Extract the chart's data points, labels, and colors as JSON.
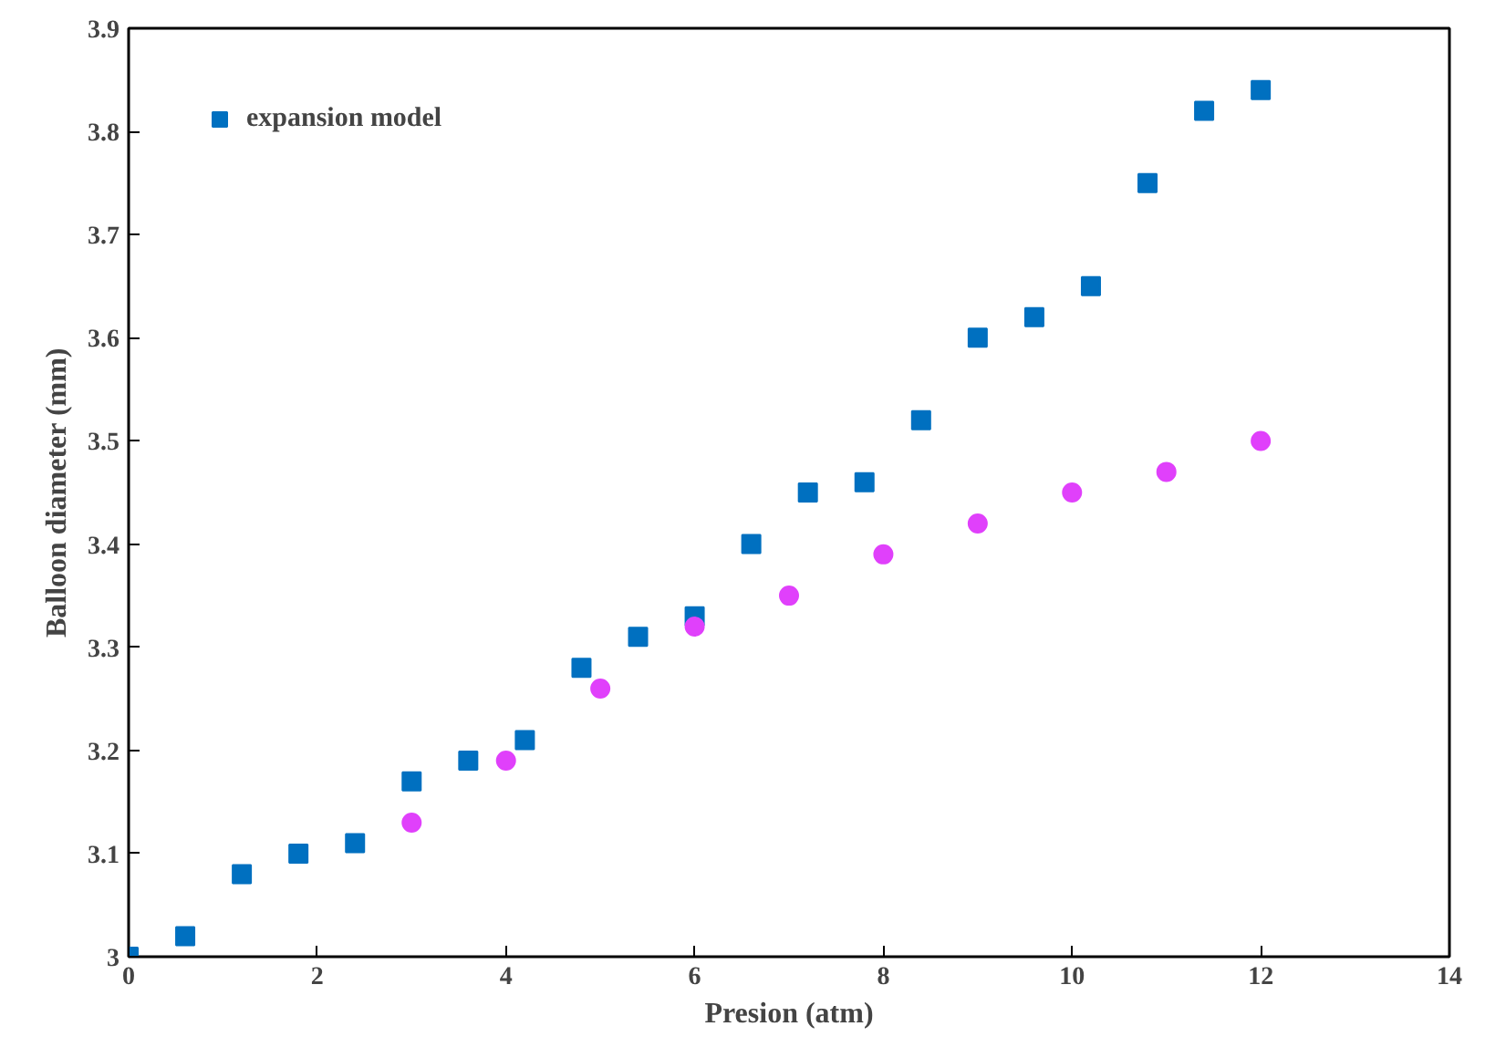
{
  "chart_data": {
    "type": "scatter",
    "xlabel": "Presion (atm)",
    "ylabel": "Balloon diameter (mm)",
    "xlim": [
      0,
      14
    ],
    "xticks": [
      0,
      2,
      4,
      6,
      8,
      10,
      12,
      14
    ],
    "ylim": [
      3,
      3.9
    ],
    "yticks": [
      {
        "value": 3,
        "label": "3"
      },
      3.1,
      3.2,
      3.3,
      3.4,
      3.5,
      3.6,
      3.7,
      3.8,
      3.9
    ],
    "grid": false,
    "legend": "top left",
    "series": [
      {
        "name": "expansion model",
        "color": "#0070c0",
        "marker": "square",
        "x": [
          0,
          0.6,
          1.2,
          1.8,
          2.4,
          3.0,
          3.6,
          4.2,
          4.8,
          5.4,
          6.0,
          6.6,
          7.2,
          7.8,
          8.4,
          9.0,
          9.6,
          10.2,
          10.8,
          11.4,
          12
        ],
        "values": [
          3.0,
          3.02,
          3.08,
          3.1,
          3.11,
          3.17,
          3.19,
          3.21,
          3.28,
          3.31,
          3.33,
          3.4,
          3.45,
          3.46,
          3.52,
          3.6,
          3.62,
          3.65,
          3.75,
          3.82,
          3.84
        ]
      },
      {
        "color": "#e040fb",
        "marker": "circle",
        "x": [
          3,
          4,
          5,
          6,
          7,
          8,
          9,
          10,
          11,
          12
        ],
        "values": [
          3.13,
          3.19,
          3.26,
          3.32,
          3.35,
          3.39,
          3.42,
          3.45,
          3.47,
          3.5
        ]
      }
    ]
  }
}
